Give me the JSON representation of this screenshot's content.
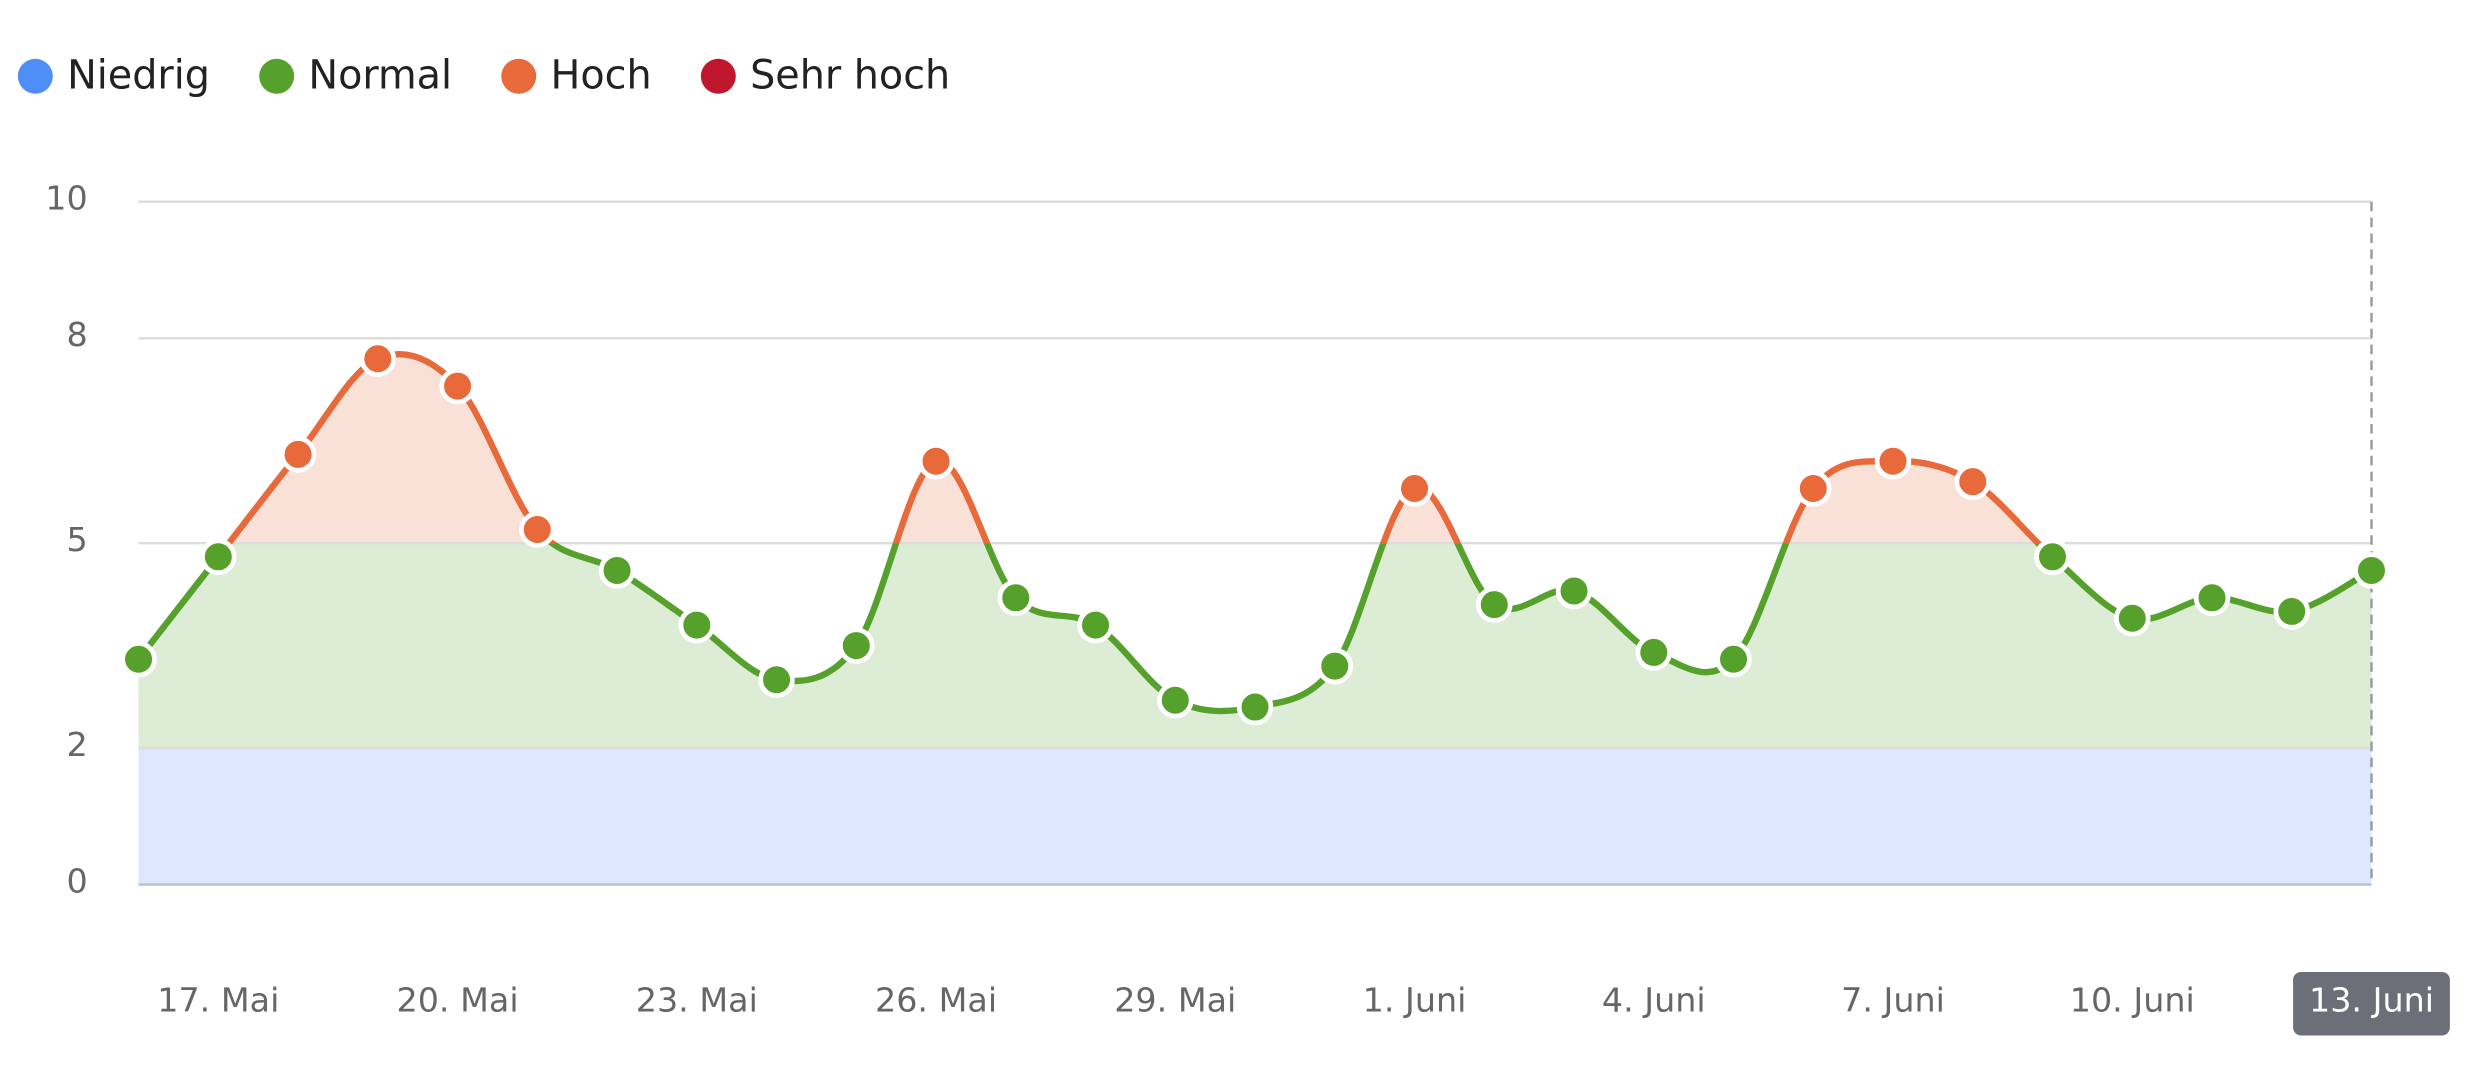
{
  "chart_data": {
    "type": "line",
    "categories": [
      null,
      "17. Mai",
      null,
      null,
      "20. Mai",
      null,
      null,
      "23. Mai",
      null,
      null,
      "26. Mai",
      null,
      null,
      "29. Mai",
      null,
      null,
      "1. Juni",
      null,
      null,
      "4. Juni",
      null,
      null,
      "7. Juni",
      null,
      null,
      "10. Juni",
      null,
      null,
      "13. Juni"
    ],
    "values": [
      3.3,
      4.8,
      6.3,
      7.7,
      7.3,
      5.2,
      4.6,
      3.8,
      3.0,
      3.5,
      6.2,
      4.2,
      3.8,
      2.7,
      2.6,
      3.2,
      5.8,
      4.1,
      4.3,
      3.4,
      3.3,
      5.8,
      6.2,
      5.9,
      4.8,
      3.9,
      4.2,
      4.0,
      4.6
    ],
    "ylim": [
      0,
      10
    ],
    "yticks": [
      0,
      2,
      5,
      8,
      10
    ],
    "grid": true,
    "levels": [
      {
        "name": "Niedrig",
        "color": "#4f8ef7"
      },
      {
        "name": "Normal",
        "color": "#56a02c"
      },
      {
        "name": "Hoch",
        "color": "#e8693a"
      },
      {
        "name": "Sehr hoch",
        "color": "#c0172f"
      }
    ]
  }
}
